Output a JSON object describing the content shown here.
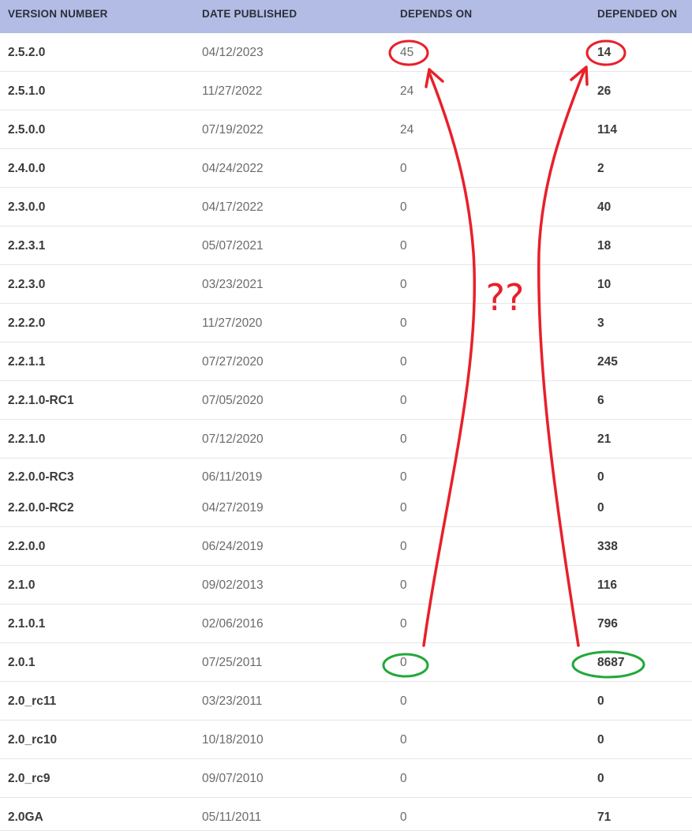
{
  "table": {
    "headers": {
      "version": "VERSION NUMBER",
      "date": "DATE PUBLISHED",
      "depends_on": "DEPENDS ON",
      "depended_on": "DEPENDED ON"
    },
    "rows": [
      {
        "version": "2.5.2.0",
        "date": "04/12/2023",
        "depends_on": "45",
        "depended_on": "14"
      },
      {
        "version": "2.5.1.0",
        "date": "11/27/2022",
        "depends_on": "24",
        "depended_on": "26"
      },
      {
        "version": "2.5.0.0",
        "date": "07/19/2022",
        "depends_on": "24",
        "depended_on": "114"
      },
      {
        "version": "2.4.0.0",
        "date": "04/24/2022",
        "depends_on": "0",
        "depended_on": "2"
      },
      {
        "version": "2.3.0.0",
        "date": "04/17/2022",
        "depends_on": "0",
        "depended_on": "40"
      },
      {
        "version": "2.2.3.1",
        "date": "05/07/2021",
        "depends_on": "0",
        "depended_on": "18"
      },
      {
        "version": "2.2.3.0",
        "date": "03/23/2021",
        "depends_on": "0",
        "depended_on": "10"
      },
      {
        "version": "2.2.2.0",
        "date": "11/27/2020",
        "depends_on": "0",
        "depended_on": "3"
      },
      {
        "version": "2.2.1.1",
        "date": "07/27/2020",
        "depends_on": "0",
        "depended_on": "245"
      },
      {
        "version": "2.2.1.0-RC1",
        "date": "07/05/2020",
        "depends_on": "0",
        "depended_on": "6"
      },
      {
        "version": "2.2.1.0",
        "date": "07/12/2020",
        "depends_on": "0",
        "depended_on": "21"
      },
      {
        "version": "2.2.0.0-RC3",
        "date": "06/11/2019",
        "depends_on": "0",
        "depended_on": "0"
      },
      {
        "version": "2.2.0.0-RC2",
        "date": "04/27/2019",
        "depends_on": "0",
        "depended_on": "0"
      },
      {
        "version": "2.2.0.0",
        "date": "06/24/2019",
        "depends_on": "0",
        "depended_on": "338"
      },
      {
        "version": "2.1.0",
        "date": "09/02/2013",
        "depends_on": "0",
        "depended_on": "116"
      },
      {
        "version": "2.1.0.1",
        "date": "02/06/2016",
        "depends_on": "0",
        "depended_on": "796"
      },
      {
        "version": "2.0.1",
        "date": "07/25/2011",
        "depends_on": "0",
        "depended_on": "8687"
      },
      {
        "version": "2.0_rc11",
        "date": "03/23/2011",
        "depends_on": "0",
        "depended_on": "0"
      },
      {
        "version": "2.0_rc10",
        "date": "10/18/2010",
        "depends_on": "0",
        "depended_on": "0"
      },
      {
        "version": "2.0_rc9",
        "date": "09/07/2010",
        "depends_on": "0",
        "depended_on": "0"
      },
      {
        "version": "2.0GA",
        "date": "05/11/2011",
        "depends_on": "0",
        "depended_on": "71"
      }
    ]
  },
  "annotation": {
    "question_marks": "??",
    "highlight_color": "#e8202a",
    "baseline_color": "#22a83a"
  }
}
